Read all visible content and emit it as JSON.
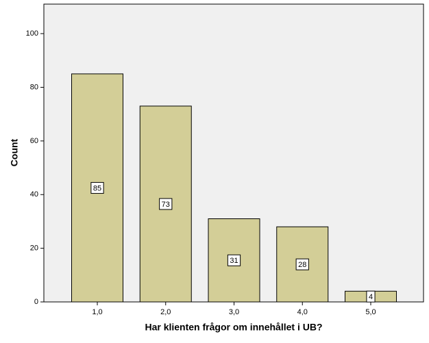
{
  "chart_data": {
    "type": "bar",
    "x_label": "Har klienten frågor om innehållet i UB?",
    "y_label": "Count",
    "categories": [
      "1,0",
      "2,0",
      "3,0",
      "4,0",
      "5,0"
    ],
    "values": [
      85,
      73,
      31,
      28,
      4
    ],
    "color": "#d3ce97",
    "ylim": [
      0,
      111
    ],
    "yticks": [
      0,
      20,
      40,
      60,
      80,
      100
    ],
    "grid": false
  }
}
